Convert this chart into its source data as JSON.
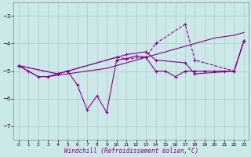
{
  "background_color": "#cce8e8",
  "grid_color": "#aacccc",
  "line_color": "#880088",
  "xlim": [
    -0.5,
    23.5
  ],
  "ylim": [
    -7.5,
    -2.5
  ],
  "yticks": [
    -7,
    -6,
    -5,
    -4,
    -3
  ],
  "xticks": [
    0,
    1,
    2,
    3,
    4,
    5,
    6,
    7,
    8,
    9,
    10,
    11,
    12,
    13,
    14,
    15,
    16,
    17,
    18,
    19,
    20,
    21,
    22,
    23
  ],
  "xlabel": "Windchill (Refroidissement éolien,°C)",
  "series1_x": [
    0,
    1,
    2,
    3,
    4,
    5,
    6,
    7,
    8,
    9,
    10,
    11,
    12,
    13,
    14,
    15,
    16,
    17,
    18,
    19,
    20,
    21,
    22,
    23
  ],
  "series1_y": [
    -4.8,
    -5.0,
    -5.2,
    -5.2,
    -5.1,
    -5.0,
    -5.5,
    -6.4,
    -5.9,
    -6.5,
    -4.6,
    -4.55,
    -4.45,
    -4.5,
    -5.0,
    -5.0,
    -5.2,
    -5.0,
    -5.0,
    -5.0,
    -5.0,
    -5.0,
    -5.0,
    -3.9
  ],
  "series2_x": [
    0,
    1,
    2,
    3,
    4,
    5,
    6,
    7,
    8,
    9,
    10,
    11,
    12,
    13,
    14,
    15,
    16,
    17,
    18,
    19,
    20,
    21,
    22,
    23
  ],
  "series2_y": [
    -4.8,
    -5.0,
    -5.2,
    -5.2,
    -5.15,
    -5.1,
    -5.05,
    -5.0,
    -4.95,
    -4.9,
    -4.8,
    -4.7,
    -4.6,
    -4.5,
    -4.4,
    -4.3,
    -4.2,
    -4.1,
    -4.0,
    -3.9,
    -3.8,
    -3.75,
    -3.7,
    -3.6
  ],
  "series3_x": [
    0,
    4,
    5,
    10,
    11,
    13,
    14,
    17,
    18,
    22,
    23
  ],
  "series3_y": [
    -4.8,
    -5.1,
    -5.0,
    -4.5,
    -4.55,
    -4.5,
    -4.0,
    -3.3,
    -4.6,
    -5.0,
    -3.9
  ],
  "series4_x": [
    0,
    4,
    5,
    10,
    11,
    13,
    14,
    17,
    18,
    22,
    23
  ],
  "series4_y": [
    -4.8,
    -5.1,
    -5.0,
    -4.5,
    -4.4,
    -4.3,
    -4.6,
    -4.7,
    -5.1,
    -5.0,
    -3.9
  ]
}
